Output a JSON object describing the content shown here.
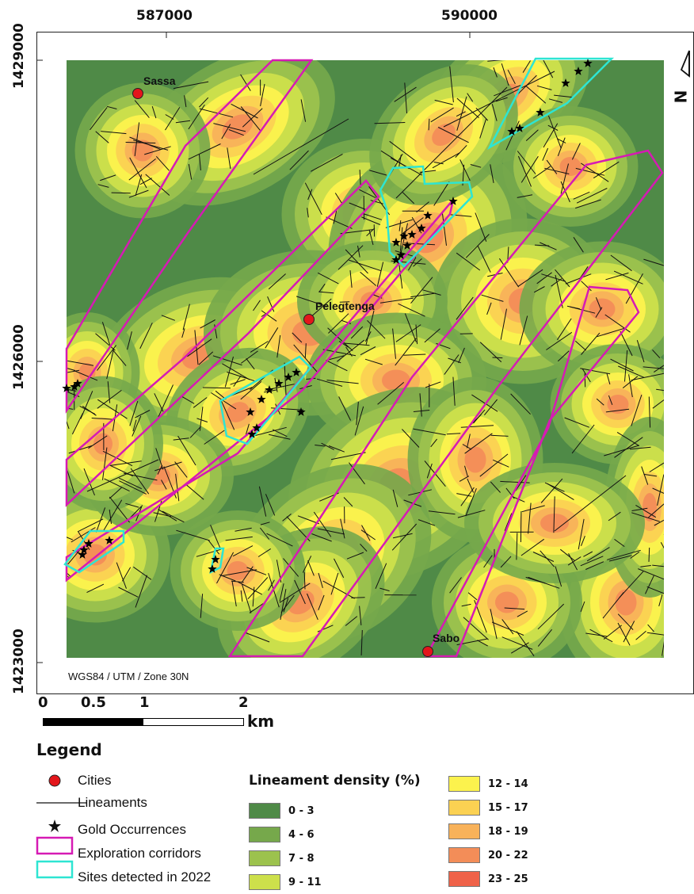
{
  "map": {
    "x_ticks": [
      "587000",
      "590000"
    ],
    "y_ticks": [
      "1429000",
      "1426000",
      "1423000"
    ],
    "crs_label": "WGS84 / UTM / Zone 30N",
    "north_arrow_label": "N",
    "cities": [
      {
        "name": "Sassa"
      },
      {
        "name": "Pelegtenga"
      },
      {
        "name": "Sabo"
      }
    ]
  },
  "scale_bar": {
    "ticks": [
      "0",
      "0.5",
      "1",
      "2"
    ],
    "unit": "km"
  },
  "legend": {
    "title": "Legend",
    "items": [
      {
        "label": "Cities",
        "icon": "red-dot"
      },
      {
        "label": "Lineaments",
        "icon": "black-line"
      },
      {
        "label": "Gold Occurrences",
        "icon": "star"
      },
      {
        "label": "Exploration corridors",
        "icon": "magenta-box",
        "color": "#d61ab4"
      },
      {
        "label": "Sites detected in 2022",
        "icon": "cyan-box",
        "color": "#2ee5d2"
      }
    ],
    "density_title": "Lineament density (%)",
    "density_classes": [
      {
        "label": "0 - 3",
        "color": "#4f8a47"
      },
      {
        "label": "4 - 6",
        "color": "#76a84b"
      },
      {
        "label": "7 - 8",
        "color": "#9cc24d"
      },
      {
        "label": "9 - 11",
        "color": "#cde04b"
      },
      {
        "label": "12 - 14",
        "color": "#fcf24d"
      },
      {
        "label": "15 - 17",
        "color": "#fbd152"
      },
      {
        "label": "18 - 19",
        "color": "#f8b25a"
      },
      {
        "label": "20 - 22",
        "color": "#f38d58"
      },
      {
        "label": "23 - 25",
        "color": "#ef6249"
      }
    ]
  }
}
